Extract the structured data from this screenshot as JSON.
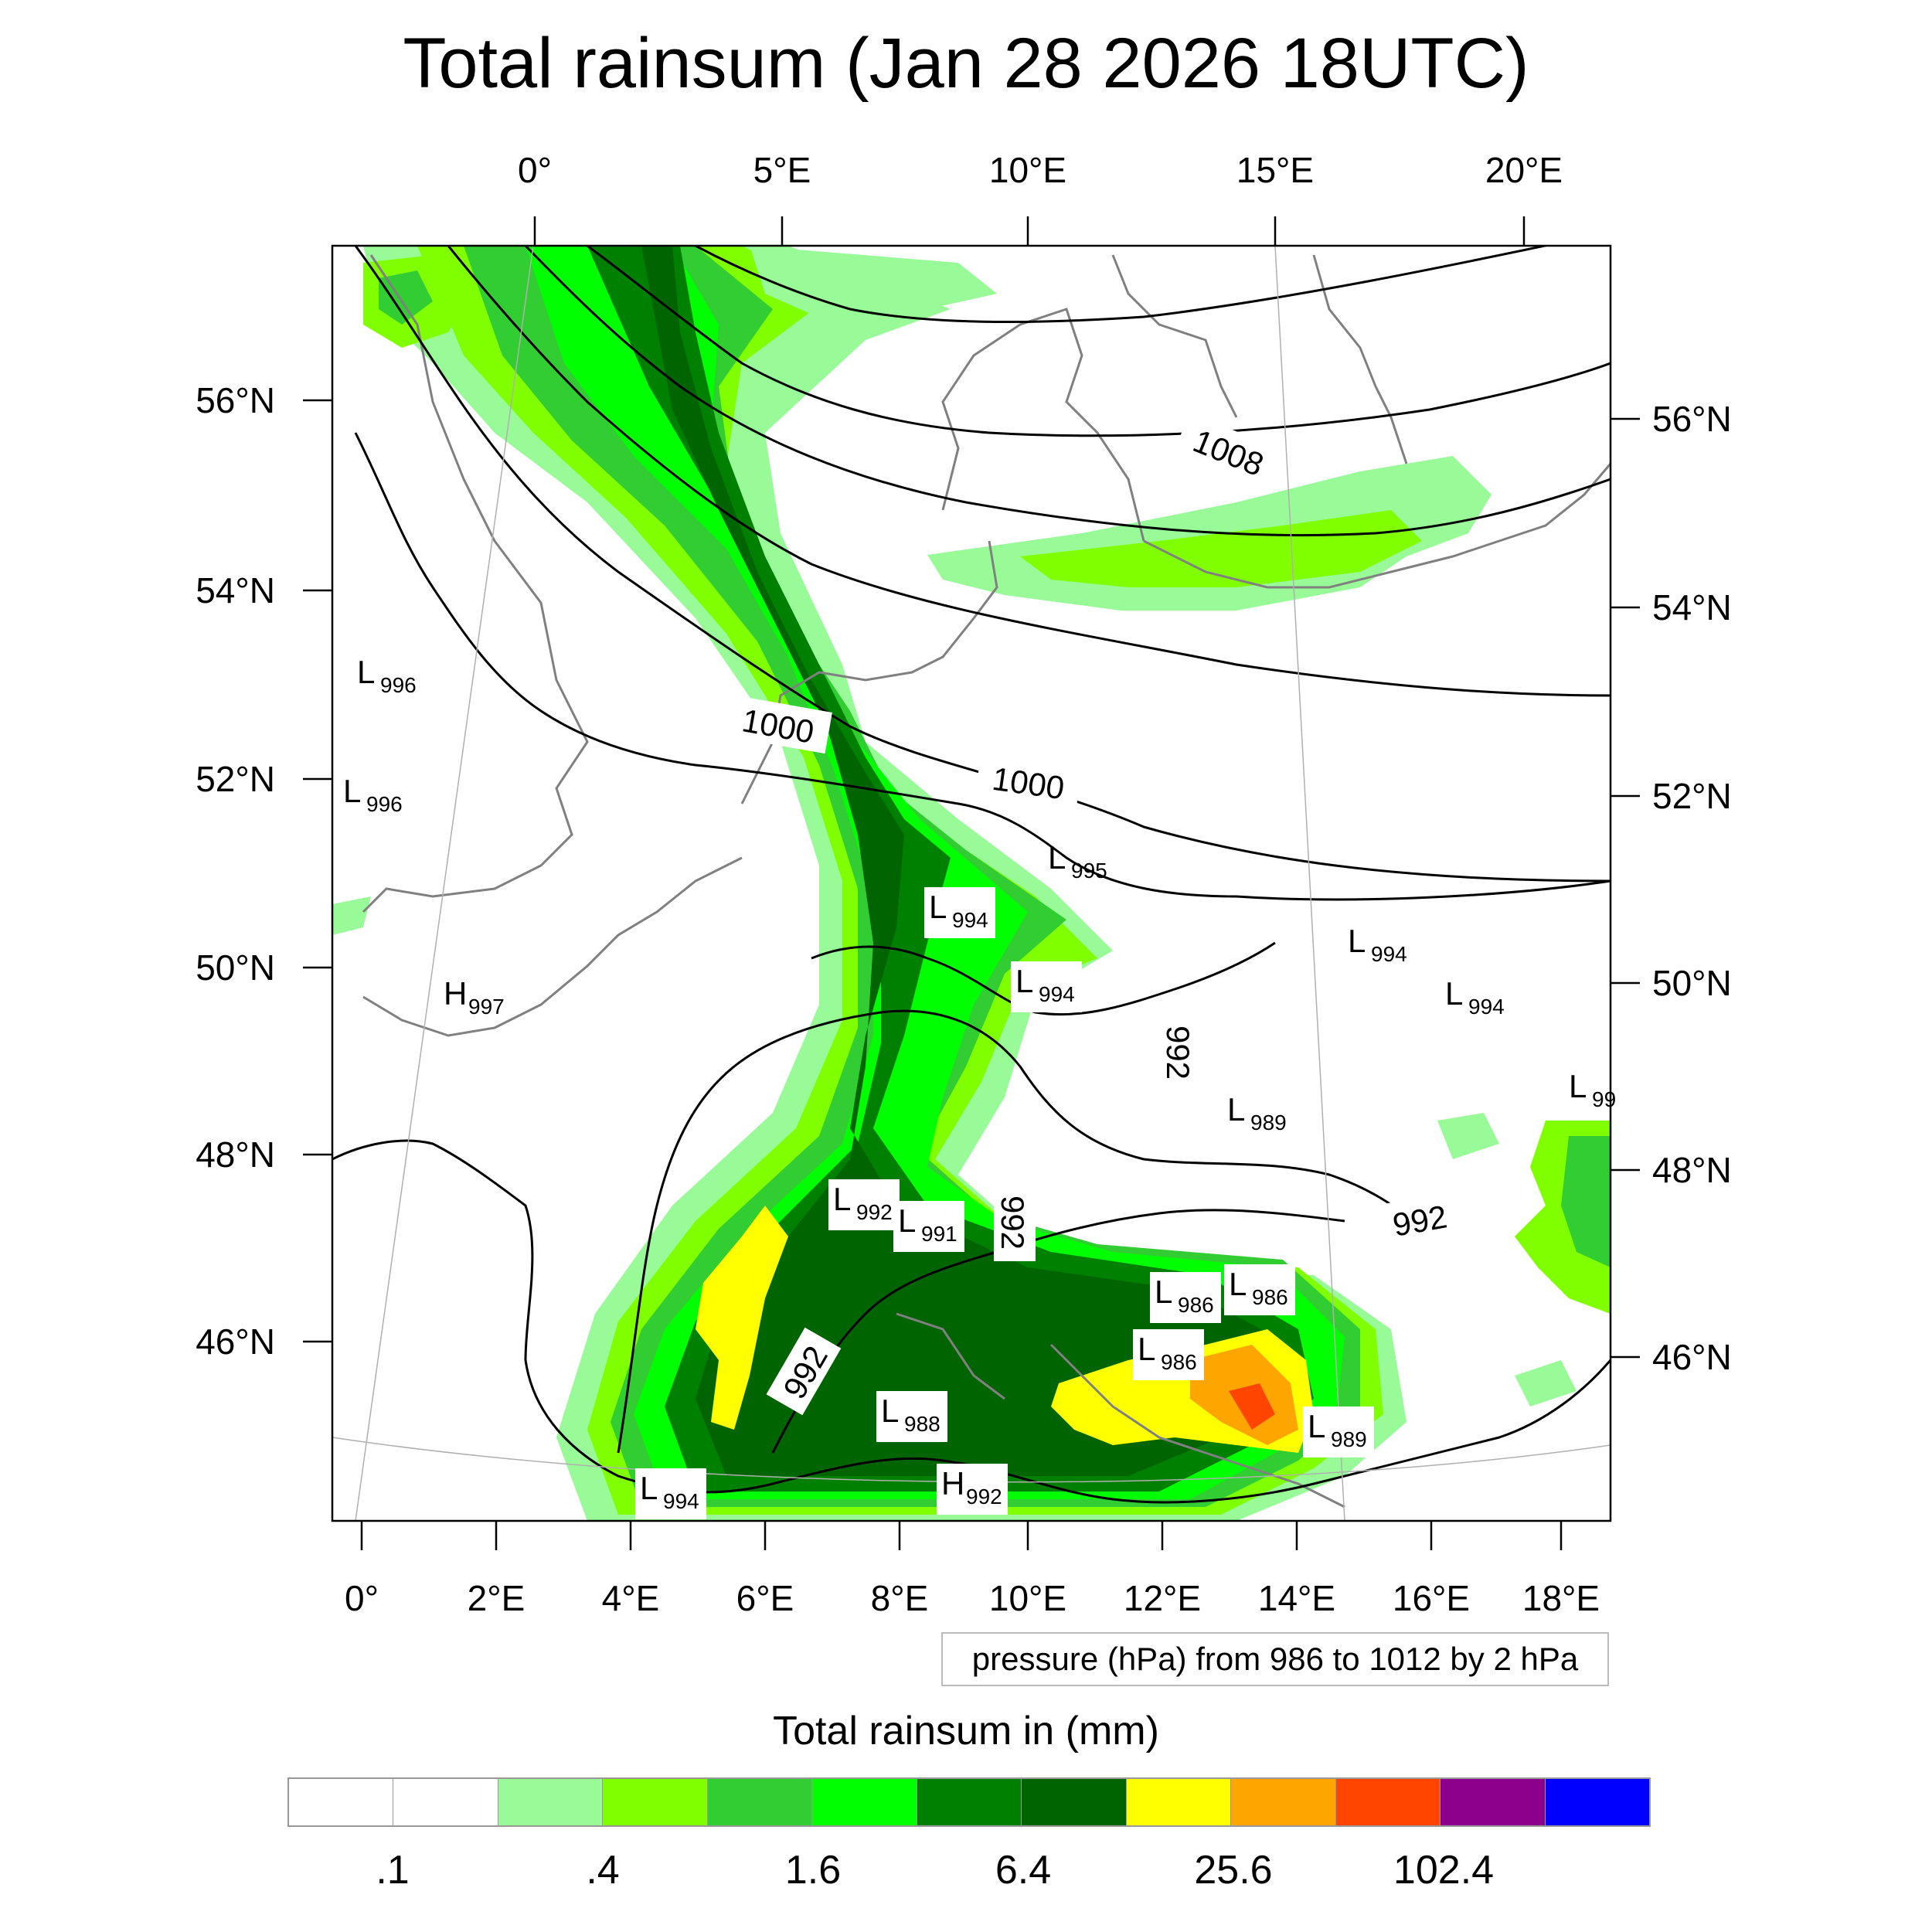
{
  "title": "Total rainsum (Jan 28 2026 18UTC)",
  "top_axis_labels": [
    "0°",
    "5°E",
    "10°E",
    "15°E",
    "20°E"
  ],
  "bottom_axis_labels": [
    "0°",
    "2°E",
    "4°E",
    "6°E",
    "8°E",
    "10°E",
    "12°E",
    "14°E",
    "16°E",
    "18°E"
  ],
  "left_axis_labels": [
    "56°N",
    "54°N",
    "52°N",
    "50°N",
    "48°N",
    "46°N"
  ],
  "right_axis_labels": [
    "56°N",
    "54°N",
    "52°N",
    "50°N",
    "48°N",
    "46°N"
  ],
  "contour_labels": [
    "1008",
    "1000",
    "1000",
    "992",
    "992",
    "992",
    "992"
  ],
  "pressure_centers": [
    {
      "type": "L",
      "value": "996"
    },
    {
      "type": "L",
      "value": "996"
    },
    {
      "type": "H",
      "value": "997"
    },
    {
      "type": "L",
      "value": "995"
    },
    {
      "type": "L",
      "value": "994"
    },
    {
      "type": "L",
      "value": "994"
    },
    {
      "type": "L",
      "value": "994"
    },
    {
      "type": "L",
      "value": "994"
    },
    {
      "type": "L",
      "value": "989"
    },
    {
      "type": "L",
      "value": "99"
    },
    {
      "type": "L",
      "value": "992"
    },
    {
      "type": "L",
      "value": "991"
    },
    {
      "type": "L",
      "value": "986"
    },
    {
      "type": "L",
      "value": "986"
    },
    {
      "type": "L",
      "value": "986"
    },
    {
      "type": "L",
      "value": "988"
    },
    {
      "type": "L",
      "value": "989"
    },
    {
      "type": "L",
      "value": "994"
    },
    {
      "type": "H",
      "value": "992"
    }
  ],
  "pressure_note": "pressure (hPa) from 986 to 1012 by 2 hPa",
  "legend": {
    "title": "Total rainsum in (mm)",
    "colors": [
      "#ffffff",
      "#ffffff",
      "#98fb98",
      "#80ff00",
      "#32cd32",
      "#00ff00",
      "#008000",
      "#006400",
      "#ffff00",
      "#ffa500",
      "#ff4500",
      "#8b008b",
      "#0000ff"
    ],
    "tick_labels": [
      ".1",
      ".4",
      "1.6",
      "6.4",
      "25.6",
      "102.4"
    ]
  }
}
